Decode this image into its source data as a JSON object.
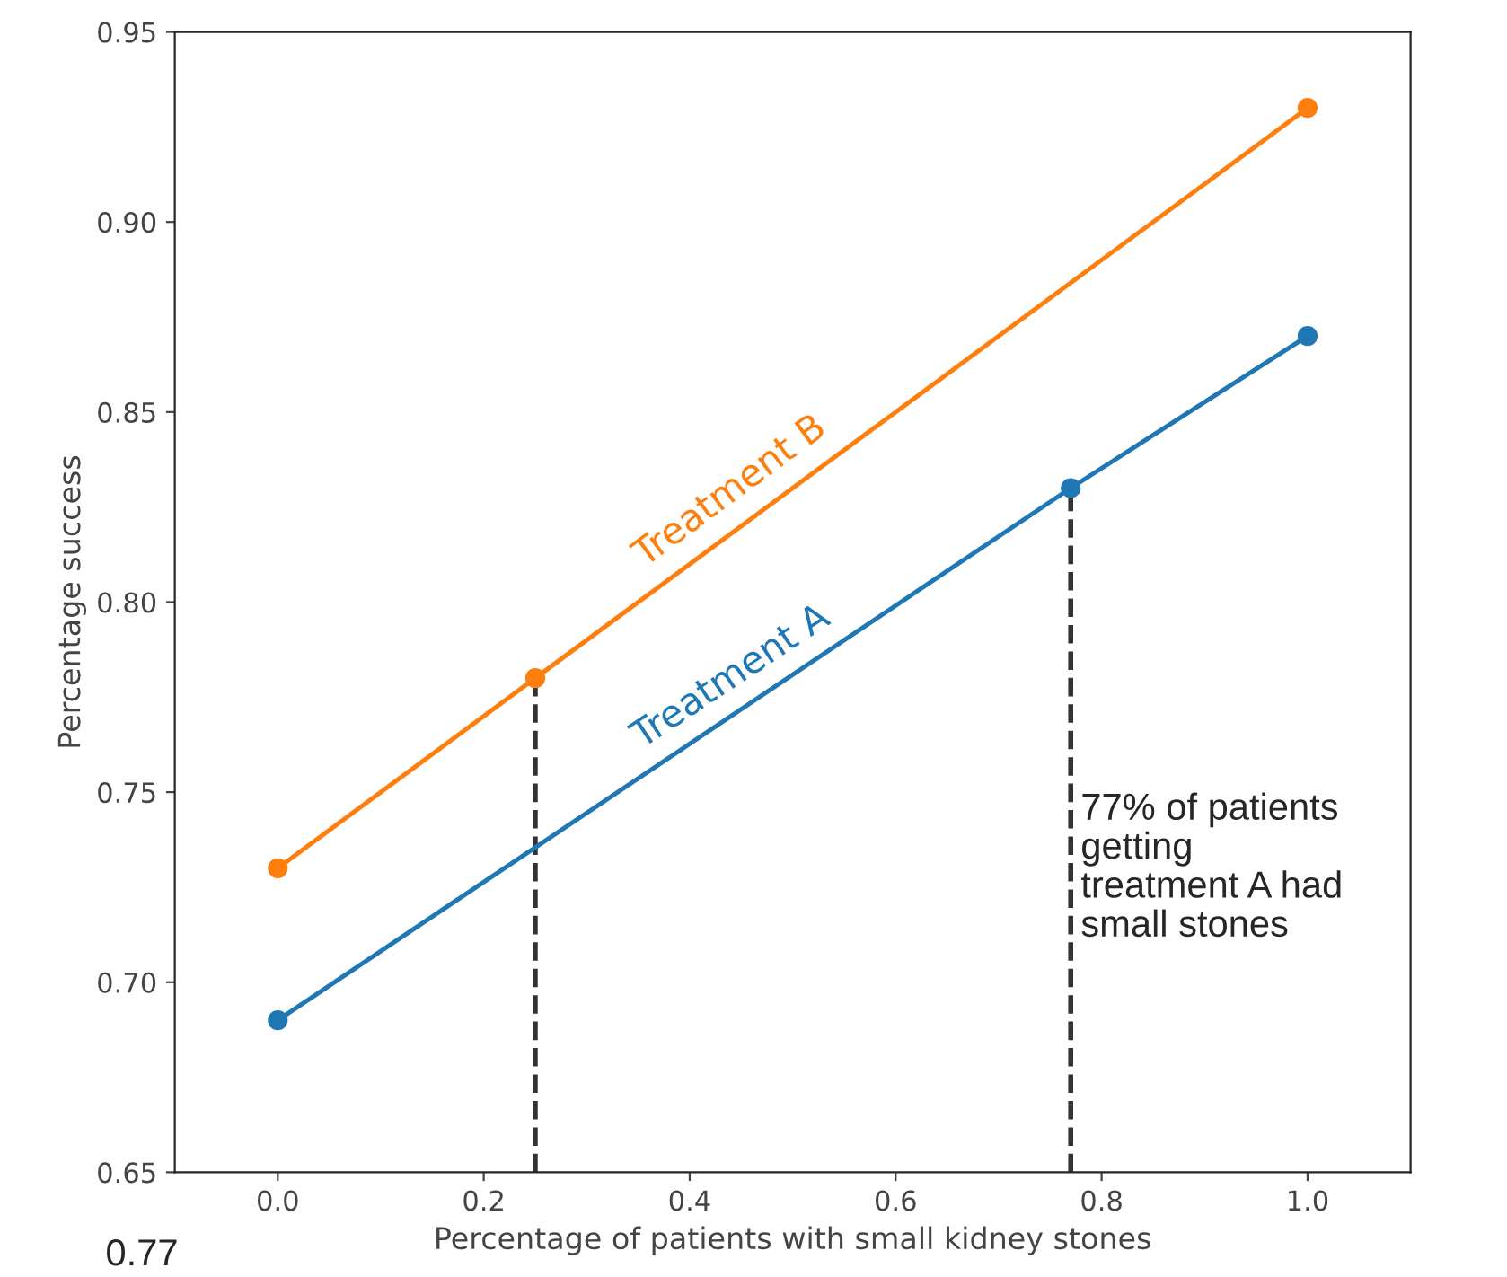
{
  "chart_data": {
    "type": "line",
    "xlabel": "Percentage of patients with small kidney stones",
    "ylabel": "Percentage success",
    "series": [
      {
        "name": "Treatment A",
        "color": "#1f77b4",
        "x": [
          0,
          0.77,
          1
        ],
        "values": [
          0.69,
          0.83,
          0.87
        ],
        "marker": "circle"
      },
      {
        "name": "Treatment B",
        "color": "#ff7f0e",
        "x": [
          0,
          0.25,
          1
        ],
        "values": [
          0.73,
          0.78,
          0.93
        ],
        "marker": "circle"
      },
      {
        "color": "#333333",
        "x": [
          0.25,
          0.25
        ],
        "values": [
          0.65,
          0.78
        ],
        "line_style": "dashed",
        "marker": "none"
      },
      {
        "color": "#333333",
        "x": [
          0.77,
          0.77
        ],
        "values": [
          0.65,
          0.83
        ],
        "line_style": "dashed",
        "marker": "none"
      }
    ],
    "xlim": [
      -0.1,
      1.1
    ],
    "xticks": [
      {
        "value": 0,
        "label": "0.0"
      },
      0.2,
      0.4,
      0.6,
      0.8,
      {
        "value": 1,
        "label": "1.0"
      }
    ],
    "ylim": [
      0.65,
      0.95
    ],
    "yticks": [
      0.65,
      {
        "value": 0.7,
        "label": "0.70"
      },
      0.75,
      {
        "value": 0.8,
        "label": "0.80"
      },
      0.85,
      {
        "value": 0.9,
        "label": "0.90"
      },
      0.95
    ],
    "annotations": [
      {
        "text": "77% of patients\ngetting\ntreatment A had\nsmall stones",
        "x": 0.77,
        "y": 0.71
      },
      "0.77"
    ],
    "grid": false,
    "legend": false
  }
}
